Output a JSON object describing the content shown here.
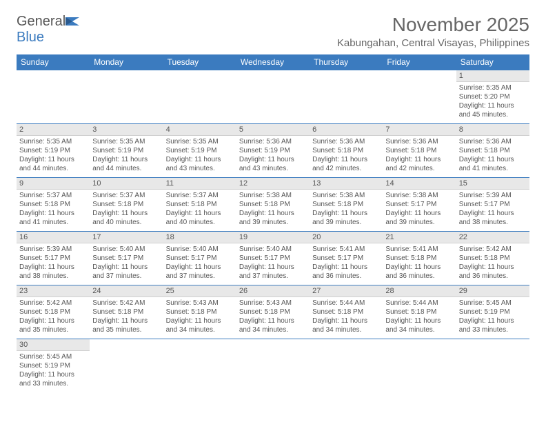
{
  "brand": {
    "name1": "General",
    "name2": "Blue"
  },
  "title": "November 2025",
  "location": "Kabungahan, Central Visayas, Philippines",
  "theme": {
    "header_bg": "#3b7bbf",
    "header_fg": "#ffffff",
    "daynum_bg": "#e8e8e8",
    "cell_border": "#3b7bbf",
    "text_color": "#555555",
    "title_color": "#666666",
    "body_bg": "#ffffff",
    "font_family": "Arial",
    "title_fontsize": 28,
    "location_fontsize": 15,
    "weekday_fontsize": 12,
    "cell_fontsize": 10
  },
  "weekdays": [
    "Sunday",
    "Monday",
    "Tuesday",
    "Wednesday",
    "Thursday",
    "Friday",
    "Saturday"
  ],
  "start_weekday_index": 6,
  "days": [
    {
      "n": 1,
      "sunrise": "5:35 AM",
      "sunset": "5:20 PM",
      "daylight": "11 hours and 45 minutes."
    },
    {
      "n": 2,
      "sunrise": "5:35 AM",
      "sunset": "5:19 PM",
      "daylight": "11 hours and 44 minutes."
    },
    {
      "n": 3,
      "sunrise": "5:35 AM",
      "sunset": "5:19 PM",
      "daylight": "11 hours and 44 minutes."
    },
    {
      "n": 4,
      "sunrise": "5:35 AM",
      "sunset": "5:19 PM",
      "daylight": "11 hours and 43 minutes."
    },
    {
      "n": 5,
      "sunrise": "5:36 AM",
      "sunset": "5:19 PM",
      "daylight": "11 hours and 43 minutes."
    },
    {
      "n": 6,
      "sunrise": "5:36 AM",
      "sunset": "5:18 PM",
      "daylight": "11 hours and 42 minutes."
    },
    {
      "n": 7,
      "sunrise": "5:36 AM",
      "sunset": "5:18 PM",
      "daylight": "11 hours and 42 minutes."
    },
    {
      "n": 8,
      "sunrise": "5:36 AM",
      "sunset": "5:18 PM",
      "daylight": "11 hours and 41 minutes."
    },
    {
      "n": 9,
      "sunrise": "5:37 AM",
      "sunset": "5:18 PM",
      "daylight": "11 hours and 41 minutes."
    },
    {
      "n": 10,
      "sunrise": "5:37 AM",
      "sunset": "5:18 PM",
      "daylight": "11 hours and 40 minutes."
    },
    {
      "n": 11,
      "sunrise": "5:37 AM",
      "sunset": "5:18 PM",
      "daylight": "11 hours and 40 minutes."
    },
    {
      "n": 12,
      "sunrise": "5:38 AM",
      "sunset": "5:18 PM",
      "daylight": "11 hours and 39 minutes."
    },
    {
      "n": 13,
      "sunrise": "5:38 AM",
      "sunset": "5:18 PM",
      "daylight": "11 hours and 39 minutes."
    },
    {
      "n": 14,
      "sunrise": "5:38 AM",
      "sunset": "5:17 PM",
      "daylight": "11 hours and 39 minutes."
    },
    {
      "n": 15,
      "sunrise": "5:39 AM",
      "sunset": "5:17 PM",
      "daylight": "11 hours and 38 minutes."
    },
    {
      "n": 16,
      "sunrise": "5:39 AM",
      "sunset": "5:17 PM",
      "daylight": "11 hours and 38 minutes."
    },
    {
      "n": 17,
      "sunrise": "5:40 AM",
      "sunset": "5:17 PM",
      "daylight": "11 hours and 37 minutes."
    },
    {
      "n": 18,
      "sunrise": "5:40 AM",
      "sunset": "5:17 PM",
      "daylight": "11 hours and 37 minutes."
    },
    {
      "n": 19,
      "sunrise": "5:40 AM",
      "sunset": "5:17 PM",
      "daylight": "11 hours and 37 minutes."
    },
    {
      "n": 20,
      "sunrise": "5:41 AM",
      "sunset": "5:17 PM",
      "daylight": "11 hours and 36 minutes."
    },
    {
      "n": 21,
      "sunrise": "5:41 AM",
      "sunset": "5:18 PM",
      "daylight": "11 hours and 36 minutes."
    },
    {
      "n": 22,
      "sunrise": "5:42 AM",
      "sunset": "5:18 PM",
      "daylight": "11 hours and 36 minutes."
    },
    {
      "n": 23,
      "sunrise": "5:42 AM",
      "sunset": "5:18 PM",
      "daylight": "11 hours and 35 minutes."
    },
    {
      "n": 24,
      "sunrise": "5:42 AM",
      "sunset": "5:18 PM",
      "daylight": "11 hours and 35 minutes."
    },
    {
      "n": 25,
      "sunrise": "5:43 AM",
      "sunset": "5:18 PM",
      "daylight": "11 hours and 34 minutes."
    },
    {
      "n": 26,
      "sunrise": "5:43 AM",
      "sunset": "5:18 PM",
      "daylight": "11 hours and 34 minutes."
    },
    {
      "n": 27,
      "sunrise": "5:44 AM",
      "sunset": "5:18 PM",
      "daylight": "11 hours and 34 minutes."
    },
    {
      "n": 28,
      "sunrise": "5:44 AM",
      "sunset": "5:18 PM",
      "daylight": "11 hours and 34 minutes."
    },
    {
      "n": 29,
      "sunrise": "5:45 AM",
      "sunset": "5:19 PM",
      "daylight": "11 hours and 33 minutes."
    },
    {
      "n": 30,
      "sunrise": "5:45 AM",
      "sunset": "5:19 PM",
      "daylight": "11 hours and 33 minutes."
    }
  ],
  "labels": {
    "sunrise": "Sunrise:",
    "sunset": "Sunset:",
    "daylight": "Daylight:"
  }
}
